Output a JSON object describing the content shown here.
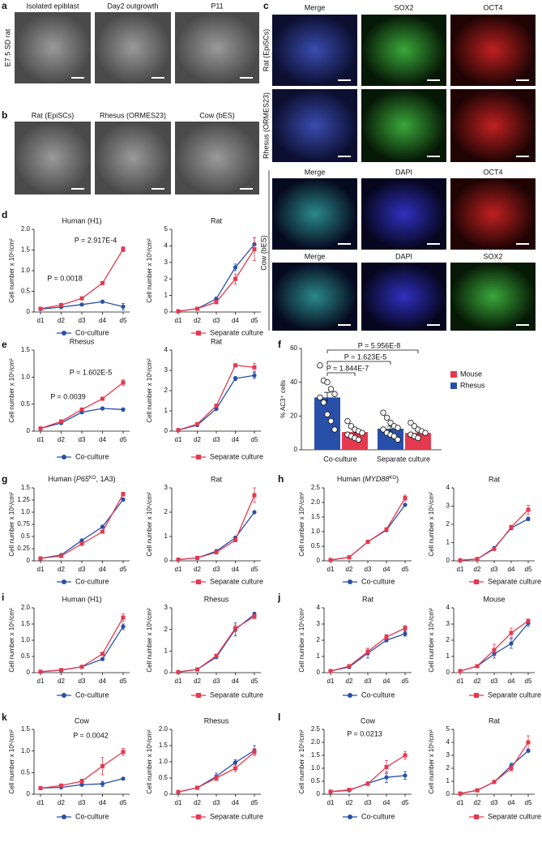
{
  "figure": {
    "panel_letters": [
      "a",
      "b",
      "c",
      "d",
      "e",
      "f",
      "g",
      "h",
      "i",
      "j",
      "k",
      "l"
    ],
    "a": {
      "row_label": "E7.5 SD rat",
      "titles": [
        "Isolated epiblast",
        "Day2 outgrowth",
        "P11"
      ]
    },
    "b": {
      "titles": [
        "Rat (EpiSCs)",
        "Rhesus (ORMES23)",
        "Cow (bES)"
      ]
    },
    "c": {
      "row_labels": [
        "Rat (EpiSCs)",
        "Rhesus (ORMES23)",
        "Cow (bES)"
      ],
      "titles_top": [
        "Merge",
        "SOX2",
        "OCT4"
      ],
      "titles_cow_1": [
        "Merge",
        "DAPI",
        "OCT4"
      ],
      "titles_cow_2": [
        "Merge",
        "DAPI",
        "SOX2"
      ],
      "title_colors": {
        "Merge": "#111111",
        "SOX2": "#2e9e2e",
        "OCT4": "#d9262b",
        "DAPI": "#2626b8"
      }
    }
  },
  "chart_data": [
    {
      "type": "line",
      "title": "Human (H1)",
      "ylabel": "Cell number x 10⁵/cm²",
      "categories": [
        "d1",
        "d2",
        "d3",
        "d4",
        "d5"
      ],
      "ylim": [
        0,
        2
      ],
      "yticks": [
        0,
        0.5,
        {
          "value": 1,
          "label": "1.0"
        },
        1.5,
        {
          "value": 2,
          "label": "2.0"
        }
      ],
      "annotations": [
        "P = 2.917E-4",
        "P = 0.0018"
      ],
      "series": [
        {
          "name": "Co-culture",
          "color": "#2850a8",
          "values": [
            0.07,
            0.12,
            0.18,
            0.25,
            0.13
          ],
          "errors": [
            0.01,
            0.02,
            0.02,
            0.02,
            0.08
          ]
        },
        {
          "color": "#e5394f",
          "values": [
            0.08,
            0.17,
            0.33,
            0.7,
            1.52
          ],
          "errors": [
            0.01,
            0.02,
            0.03,
            0.03,
            0.06
          ]
        }
      ]
    },
    {
      "type": "line",
      "title": "Rat",
      "ylabel": "Cell number x 10⁵/cm²",
      "categories": [
        "d1",
        "d2",
        "d3",
        "d4",
        "d5"
      ],
      "ylim": [
        0,
        5
      ],
      "yticks": [
        0,
        1,
        2,
        3,
        4,
        5
      ],
      "series": [
        {
          "color": "#2850a8",
          "values": [
            0.05,
            0.2,
            0.8,
            2.7,
            4.1
          ],
          "errors": [
            0.02,
            0.05,
            0.1,
            0.2,
            0.4
          ]
        },
        {
          "name": "Separate culture",
          "color": "#e5394f",
          "values": [
            0.05,
            0.2,
            0.6,
            2.0,
            3.8
          ],
          "errors": [
            0.02,
            0.05,
            0.1,
            0.3,
            0.7
          ]
        }
      ]
    },
    {
      "type": "line",
      "title": "Rhesus",
      "ylabel": "Cell number x 10⁵/cm²",
      "categories": [
        "d1",
        "d2",
        "d3",
        "d4",
        "d5"
      ],
      "ylim": [
        0,
        1.5
      ],
      "yticks": [
        0,
        0.5,
        {
          "value": 1,
          "label": "1.0"
        },
        1.5
      ],
      "annotations": [
        "P = 1.602E-5",
        "P = 0.0039"
      ],
      "series": [
        {
          "name": "Co-culture",
          "color": "#2850a8",
          "values": [
            0.05,
            0.15,
            0.35,
            0.42,
            0.4
          ],
          "errors": [
            0.01,
            0.02,
            0.02,
            0.02,
            0.03
          ]
        },
        {
          "color": "#e5394f",
          "values": [
            0.05,
            0.18,
            0.4,
            0.6,
            0.9
          ],
          "errors": [
            0.01,
            0.02,
            0.02,
            0.02,
            0.05
          ]
        }
      ]
    },
    {
      "type": "line",
      "title": "Rat",
      "ylabel": "Cell number x 10⁵/cm²",
      "categories": [
        "d1",
        "d2",
        "d3",
        "d4",
        "d5"
      ],
      "ylim": [
        0,
        4
      ],
      "yticks": [
        0,
        1,
        2,
        3,
        4
      ],
      "series": [
        {
          "color": "#2850a8",
          "values": [
            0.05,
            0.3,
            1.1,
            2.6,
            2.75
          ],
          "errors": [
            0.02,
            0.03,
            0.05,
            0.1,
            0.15
          ]
        },
        {
          "name": "Separate culture",
          "color": "#e5394f",
          "values": [
            0.05,
            0.35,
            1.25,
            3.25,
            3.15
          ],
          "errors": [
            0.02,
            0.03,
            0.05,
            0.05,
            0.2
          ]
        }
      ]
    },
    {
      "type": "line",
      "title": [
        {
          "text": "Human ("
        },
        {
          "text": "P65",
          "italic": true
        },
        {
          "text": "KO",
          "sup": true
        },
        {
          "text": ", 1A3)"
        }
      ],
      "ylabel": "Cell number x 10⁵/cm²",
      "categories": [
        "d1",
        "d2",
        "d3",
        "d4",
        "d5"
      ],
      "ylim": [
        0,
        1.5
      ],
      "yticks": [
        0,
        0.25,
        0.5,
        0.75,
        {
          "value": 1,
          "label": "1.0"
        },
        1.25,
        1.5
      ],
      "series": [
        {
          "name": "Co-culture",
          "color": "#2850a8",
          "values": [
            0.05,
            0.12,
            0.42,
            0.7,
            1.26
          ],
          "errors": [
            0.01,
            0.01,
            0.02,
            0.03,
            0.03
          ]
        },
        {
          "color": "#e5394f",
          "values": [
            0.05,
            0.1,
            0.35,
            0.6,
            1.37
          ],
          "errors": [
            0.01,
            0.01,
            0.03,
            0.03,
            0.04
          ]
        }
      ]
    },
    {
      "type": "line",
      "title": "Rat",
      "ylabel": "Cell number x 10⁵/cm²",
      "categories": [
        "d1",
        "d2",
        "d3",
        "d4",
        "d5"
      ],
      "ylim": [
        0,
        3
      ],
      "yticks": [
        0,
        1,
        2,
        3
      ],
      "series": [
        {
          "color": "#2850a8",
          "values": [
            0.05,
            0.12,
            0.4,
            0.95,
            2.0
          ],
          "errors": [
            0.01,
            0.02,
            0.03,
            0.05,
            0.05
          ]
        },
        {
          "name": "Separate culture",
          "color": "#e5394f",
          "values": [
            0.05,
            0.12,
            0.35,
            0.85,
            2.7
          ],
          "errors": [
            0.01,
            0.02,
            0.03,
            0.05,
            0.3
          ]
        }
      ]
    },
    {
      "type": "line",
      "title": [
        {
          "text": "Human ("
        },
        {
          "text": "MYD88",
          "italic": true
        },
        {
          "text": "KO",
          "sup": true
        },
        {
          "text": ")"
        }
      ],
      "ylabel": "Cell number x 10⁵/cm²",
      "categories": [
        "d1",
        "d2",
        "d3",
        "d4",
        "d5"
      ],
      "ylim": [
        0,
        2.5
      ],
      "yticks": [
        0,
        0.5,
        {
          "value": 1,
          "label": "1.0"
        },
        1.5,
        {
          "value": 2,
          "label": "2.0"
        },
        2.5
      ],
      "series": [
        {
          "name": "Co-culture",
          "color": "#2850a8",
          "values": [
            0.03,
            0.12,
            0.65,
            1.05,
            1.92
          ],
          "errors": [
            0.01,
            0.02,
            0.03,
            0.04,
            0.04
          ]
        },
        {
          "color": "#e5394f",
          "values": [
            0.03,
            0.12,
            0.65,
            1.08,
            2.15
          ],
          "errors": [
            0.01,
            0.02,
            0.03,
            0.05,
            0.1
          ]
        }
      ]
    },
    {
      "type": "line",
      "title": "Rat",
      "ylabel": "Cell number x 10⁵/cm²",
      "categories": [
        "d1",
        "d2",
        "d3",
        "d4",
        "d5"
      ],
      "ylim": [
        0,
        4
      ],
      "yticks": [
        0,
        1,
        2,
        3,
        4
      ],
      "series": [
        {
          "color": "#2850a8",
          "values": [
            0.03,
            0.1,
            0.7,
            1.8,
            2.3
          ],
          "errors": [
            0.01,
            0.02,
            0.05,
            0.1,
            0.1
          ]
        },
        {
          "name": "Separate culture",
          "color": "#e5394f",
          "values": [
            0.03,
            0.1,
            0.65,
            1.85,
            2.8
          ],
          "errors": [
            0.01,
            0.02,
            0.05,
            0.1,
            0.25
          ]
        }
      ]
    },
    {
      "type": "line",
      "title": "Human (H1)",
      "ylabel": "Cell number x 10⁵/cm²",
      "categories": [
        "d1",
        "d2",
        "d3",
        "d4",
        "d5"
      ],
      "ylim": [
        0,
        2
      ],
      "yticks": [
        0,
        0.5,
        {
          "value": 1,
          "label": "1.0"
        },
        1.5,
        {
          "value": 2,
          "label": "2.0"
        }
      ],
      "series": [
        {
          "name": "Co-culture",
          "color": "#2850a8",
          "values": [
            0.03,
            0.08,
            0.18,
            0.42,
            1.42
          ],
          "errors": [
            0.01,
            0.01,
            0.02,
            0.03,
            0.08
          ]
        },
        {
          "color": "#e5394f",
          "values": [
            0.03,
            0.08,
            0.18,
            0.58,
            1.7
          ],
          "errors": [
            0.01,
            0.01,
            0.02,
            0.05,
            0.12
          ]
        }
      ]
    },
    {
      "type": "line",
      "title": "Rhesus",
      "ylabel": "Cell number x 10⁵/cm²",
      "categories": [
        "d1",
        "d2",
        "d3",
        "d4",
        "d5"
      ],
      "ylim": [
        0,
        3
      ],
      "yticks": [
        0,
        1,
        2,
        3
      ],
      "series": [
        {
          "color": "#2850a8",
          "values": [
            0.03,
            0.15,
            0.72,
            2.0,
            2.7
          ],
          "errors": [
            0.01,
            0.02,
            0.05,
            0.3,
            0.1
          ]
        },
        {
          "name": "Separate culture",
          "color": "#e5394f",
          "values": [
            0.03,
            0.15,
            0.78,
            2.05,
            2.6
          ],
          "errors": [
            0.01,
            0.02,
            0.05,
            0.15,
            0.1
          ]
        }
      ]
    },
    {
      "type": "line",
      "title": "Rat",
      "ylabel": "Cell number x 10⁵/cm²",
      "categories": [
        "d1",
        "d2",
        "d3",
        "d4",
        "d5"
      ],
      "ylim": [
        0,
        4
      ],
      "yticks": [
        0,
        1,
        2,
        3,
        4
      ],
      "series": [
        {
          "name": "Co-culture",
          "color": "#2850a8",
          "values": [
            0.1,
            0.35,
            1.2,
            2.0,
            2.4
          ],
          "errors": [
            0.03,
            0.1,
            0.3,
            0.1,
            0.15
          ]
        },
        {
          "color": "#e5394f",
          "values": [
            0.1,
            0.4,
            1.3,
            2.2,
            2.75
          ],
          "errors": [
            0.03,
            0.1,
            0.2,
            0.15,
            0.15
          ]
        }
      ]
    },
    {
      "type": "line",
      "title": "Mouse",
      "ylabel": "Cell number x 10⁵/cm²",
      "categories": [
        "d1",
        "d2",
        "d3",
        "d4",
        "d5"
      ],
      "ylim": [
        0,
        4
      ],
      "yticks": [
        0,
        1,
        2,
        3,
        4
      ],
      "series": [
        {
          "color": "#2850a8",
          "values": [
            0.1,
            0.4,
            1.15,
            1.8,
            3.05
          ],
          "errors": [
            0.03,
            0.05,
            0.25,
            0.3,
            0.2
          ]
        },
        {
          "name": "Separate culture",
          "color": "#e5394f",
          "values": [
            0.1,
            0.4,
            1.4,
            2.45,
            3.2
          ],
          "errors": [
            0.03,
            0.05,
            0.35,
            0.3,
            0.1
          ]
        }
      ]
    },
    {
      "type": "line",
      "title": "Cow",
      "ylabel": "Cell number x 10⁵/cm²",
      "categories": [
        "d1",
        "d2",
        "d3",
        "d4",
        "d5"
      ],
      "ylim": [
        0,
        1.5
      ],
      "yticks": [
        0,
        0.5,
        {
          "value": 1,
          "label": "1.0"
        },
        1.5
      ],
      "annotations": [
        "P = 0.0042"
      ],
      "series": [
        {
          "name": "Co-culture",
          "color": "#2850a8",
          "values": [
            0.14,
            0.16,
            0.22,
            0.24,
            0.36
          ],
          "errors": [
            0.02,
            0.02,
            0.03,
            0.06,
            0.02
          ]
        },
        {
          "color": "#e5394f",
          "values": [
            0.14,
            0.2,
            0.3,
            0.65,
            0.98
          ],
          "errors": [
            0.02,
            0.03,
            0.05,
            0.2,
            0.08
          ]
        }
      ]
    },
    {
      "type": "line",
      "title": "Rhesus",
      "ylabel": "Cell number x 10⁵/cm²",
      "categories": [
        "d1",
        "d2",
        "d3",
        "d4",
        "d5"
      ],
      "ylim": [
        0,
        2
      ],
      "yticks": [
        0,
        0.5,
        {
          "value": 1,
          "label": "1.0"
        },
        1.5,
        {
          "value": 2,
          "label": "2.0"
        }
      ],
      "series": [
        {
          "color": "#2850a8",
          "values": [
            0.07,
            0.2,
            0.55,
            0.98,
            1.35
          ],
          "errors": [
            0.02,
            0.03,
            0.1,
            0.08,
            0.15
          ]
        },
        {
          "name": "Separate culture",
          "color": "#e5394f",
          "values": [
            0.07,
            0.2,
            0.5,
            0.8,
            1.3
          ],
          "errors": [
            0.02,
            0.03,
            0.08,
            0.1,
            0.1
          ]
        }
      ]
    },
    {
      "type": "line",
      "title": "Cow",
      "ylabel": "Cell number x 10⁵/cm²",
      "categories": [
        "d1",
        "d2",
        "d3",
        "d4",
        "d5"
      ],
      "ylim": [
        0,
        2.5
      ],
      "yticks": [
        0,
        0.5,
        {
          "value": 1,
          "label": "1.0"
        },
        1.5,
        {
          "value": 2,
          "label": "2.0"
        },
        2.5
      ],
      "annotations": [
        "P = 0.0213"
      ],
      "series": [
        {
          "name": "Co-culture",
          "color": "#2850a8",
          "values": [
            0.1,
            0.15,
            0.42,
            0.65,
            0.72
          ],
          "errors": [
            0.02,
            0.03,
            0.05,
            0.2,
            0.15
          ]
        },
        {
          "color": "#e5394f",
          "values": [
            0.1,
            0.17,
            0.4,
            1.05,
            1.5
          ],
          "errors": [
            0.02,
            0.03,
            0.05,
            0.25,
            0.15
          ]
        }
      ]
    },
    {
      "type": "line",
      "title": "Rat",
      "ylabel": "Cell number x 10⁵/cm²",
      "categories": [
        "d1",
        "d2",
        "d3",
        "d4",
        "d5"
      ],
      "ylim": [
        0,
        5
      ],
      "yticks": [
        0,
        1,
        2,
        3,
        4,
        5
      ],
      "series": [
        {
          "color": "#2850a8",
          "values": [
            0.05,
            0.3,
            0.95,
            2.2,
            3.35
          ],
          "errors": [
            0.02,
            0.05,
            0.08,
            0.2,
            0.1
          ]
        },
        {
          "name": "Separate culture",
          "color": "#e5394f",
          "values": [
            0.05,
            0.3,
            0.95,
            2.0,
            4.0
          ],
          "errors": [
            0.02,
            0.05,
            0.08,
            0.2,
            0.5
          ]
        }
      ]
    },
    {
      "type": "bar",
      "ylabel": "% AC3⁺ cells",
      "categories": [
        "Co-culture",
        "Separate culture"
      ],
      "ylim": [
        0,
        60
      ],
      "yticks": [
        0,
        20,
        40,
        60
      ],
      "annotations": [
        "P = 5.956E-8",
        "P = 1.623E-5",
        "P = 1.844E-7"
      ],
      "series": [
        {
          "name": "Mouse",
          "color": "#e5394f",
          "values": [
            10.5,
            10
          ],
          "errors": [
            1.3,
            1.2
          ],
          "points": [
            [
              17,
              14,
              12,
              11,
              10,
              9,
              8,
              7,
              6
            ],
            [
              16,
              14,
              12,
              11,
              10,
              9,
              8,
              7
            ]
          ]
        },
        {
          "name": "Rhesus",
          "color": "#2850a8",
          "values": [
            31,
            12.5
          ],
          "errors": [
            3,
            1.5
          ],
          "points": [
            [
              50,
              41,
              40,
              36,
              33,
              31,
              28,
              21,
              17,
              12
            ],
            [
              22,
              19,
              16,
              14,
              13,
              12,
              10,
              9,
              8,
              6
            ]
          ]
        }
      ]
    }
  ]
}
